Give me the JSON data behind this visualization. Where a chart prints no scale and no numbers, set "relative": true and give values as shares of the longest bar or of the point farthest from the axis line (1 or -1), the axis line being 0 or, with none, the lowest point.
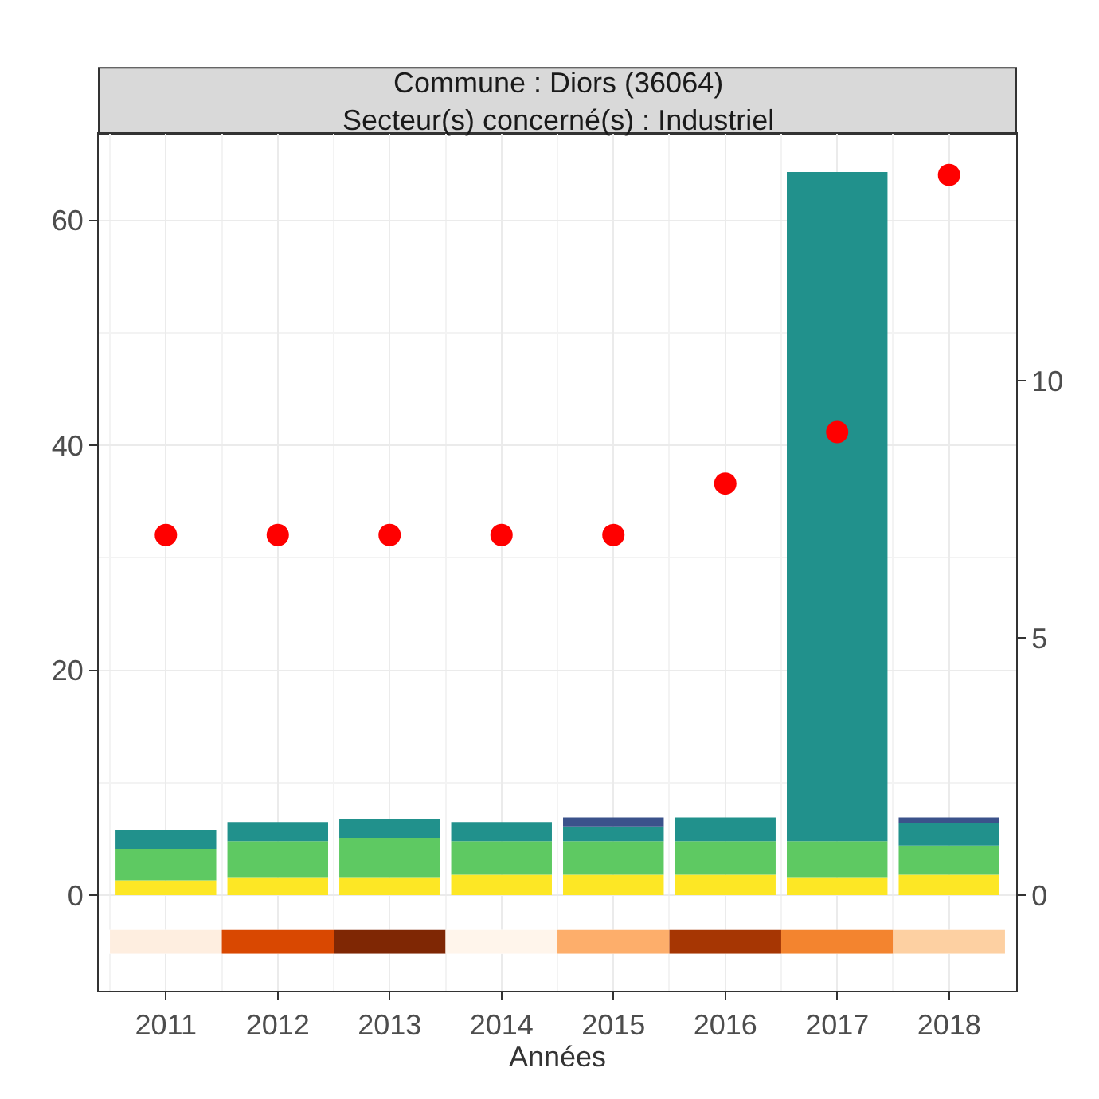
{
  "chart_data": [
    {
      "type": "bar",
      "title": "Commune : Diors (36064)\nSecteur(s) concerné(s) : Industriel",
      "xlabel": "Années",
      "categories": [
        "2011",
        "2012",
        "2013",
        "2014",
        "2015",
        "2016",
        "2017",
        "2018"
      ],
      "stacked": true,
      "series": [
        {
          "color": "#fde725",
          "values": [
            1.3,
            1.6,
            1.6,
            1.8,
            1.8,
            1.8,
            1.6,
            1.8
          ]
        },
        {
          "color": "#5ec962",
          "values": [
            2.8,
            3.2,
            3.5,
            3.0,
            3.0,
            3.0,
            3.2,
            2.6
          ]
        },
        {
          "color": "#21918c",
          "values": [
            1.7,
            1.7,
            1.7,
            1.7,
            1.3,
            2.1,
            59.5,
            2.0
          ]
        },
        {
          "color": "#3b528b",
          "values": [
            null,
            null,
            null,
            null,
            0.8,
            null,
            null,
            0.5
          ]
        },
        {
          "type": "scatter",
          "axis": "y2",
          "color": "#ff0000",
          "marker": "circle",
          "values": [
            7,
            7,
            7,
            7,
            7,
            8,
            9,
            14
          ]
        }
      ],
      "ylim": [
        -8.5,
        67.7
      ],
      "yticks": [
        0,
        20,
        40,
        60
      ],
      "y2lim": [
        -1.86,
        14.8
      ],
      "y2ticks": [
        0,
        5,
        10
      ],
      "grid": true
    },
    {
      "type": "bar",
      "relative": true,
      "categories": [
        null,
        null,
        null,
        null,
        null,
        null,
        null,
        null
      ],
      "colors": [
        "#feeee0",
        "#d94801",
        "#7f2704",
        "#fff5eb",
        "#fdae6b",
        "#a63603",
        "#f3842f",
        "#fdd0a2"
      ],
      "values": [
        1,
        1,
        1,
        1,
        1,
        1,
        1,
        1
      ]
    }
  ]
}
